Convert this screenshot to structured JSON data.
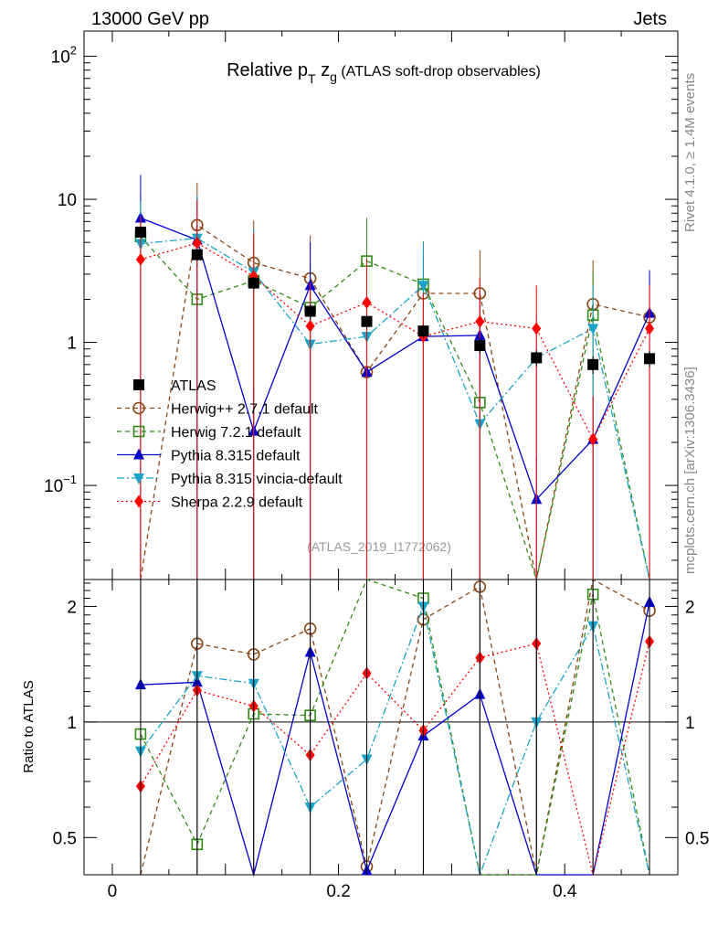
{
  "chart_data": {
    "type": "line",
    "header_left": "13000 GeV pp",
    "header_right": "Jets",
    "title_main": "Relative p",
    "title_sub_T": "T",
    "title_z": " z",
    "title_sub_g": "g",
    "title_paren": " (ATLAS soft-drop observables)",
    "side_label_top": "Rivet 4.1.0, ≥ 1.4M events",
    "side_label_bottom": "mcplots.cern.ch [arXiv:1306.3436]",
    "analysis_label": "(ATLAS_2019_I1772062)",
    "ratio_ylabel": "Ratio to ATLAS",
    "x_range": [
      -0.025,
      0.5
    ],
    "main_y_range": [
      0.022,
      150
    ],
    "ratio_y_range": [
      0.4,
      2.35
    ],
    "x_ticks": [
      {
        "v": 0,
        "label": "0"
      },
      {
        "v": 0.2,
        "label": "0.2"
      },
      {
        "v": 0.4,
        "label": "0.4"
      }
    ],
    "main_y_ticks": [
      {
        "v": 0.1,
        "base": "10",
        "exp": "−1"
      },
      {
        "v": 1,
        "base": "1",
        "exp": ""
      },
      {
        "v": 10,
        "base": "10",
        "exp": ""
      },
      {
        "v": 100,
        "base": "10",
        "exp": "2"
      }
    ],
    "ratio_y_ticks": [
      {
        "v": 0.5,
        "label": "0.5"
      },
      {
        "v": 1,
        "label": "1"
      },
      {
        "v": 2,
        "label": "2"
      }
    ],
    "x": [
      0.025,
      0.075,
      0.125,
      0.175,
      0.225,
      0.275,
      0.325,
      0.375,
      0.425,
      0.475
    ],
    "series": [
      {
        "name": "ATLAS",
        "color": "#000000",
        "marker": "square",
        "dash": "",
        "connect": false,
        "values": [
          5.9,
          4.1,
          2.6,
          1.65,
          1.4,
          1.2,
          0.95,
          0.78,
          0.7,
          0.77
        ],
        "err_up": [
          0.0,
          0.3,
          0.25,
          0.2,
          0.15,
          0.12,
          0.12,
          0.1,
          0.1,
          0.1
        ],
        "err_dn": [
          0.0,
          0.3,
          0.25,
          0.2,
          0.15,
          0.12,
          0.12,
          0.1,
          0.1,
          0.1
        ]
      },
      {
        "name": "Herwig++ 2.7.1 default",
        "color": "#8b4513",
        "marker": "circle-open",
        "dash": "5,4",
        "connect": true,
        "values": [
          0.02,
          6.6,
          3.6,
          2.8,
          0.62,
          2.2,
          2.2,
          0.0,
          1.85,
          1.5
        ],
        "ratio": [
          0.3,
          1.6,
          1.5,
          1.75,
          0.42,
          1.85,
          2.25,
          0.0,
          2.6,
          1.95
        ],
        "err_up": [
          0,
          6.5,
          3.5,
          2.8,
          1.2,
          2.2,
          2.2,
          0,
          1.9,
          1.5
        ],
        "err_dn": [
          0,
          6.5,
          3.5,
          2.8,
          0.62,
          2.2,
          2.2,
          0,
          1.85,
          1.5
        ]
      },
      {
        "name": "Herwig 7.2.1 default",
        "color": "#2e8b13",
        "marker": "square-open",
        "dash": "5,4",
        "connect": true,
        "values": [
          5.5,
          2.0,
          2.7,
          1.75,
          3.7,
          2.55,
          0.38,
          0.02,
          1.55,
          0.02
        ],
        "ratio": [
          0.93,
          0.48,
          1.05,
          1.04,
          2.6,
          2.1,
          0.3,
          0.2,
          2.15,
          0.3
        ],
        "err_up": [
          5.5,
          2.0,
          2.7,
          1.75,
          3.7,
          2.55,
          0.4,
          0,
          1.55,
          0
        ],
        "err_dn": [
          5.5,
          2.0,
          2.7,
          1.75,
          3.7,
          2.55,
          0.38,
          0,
          1.55,
          0
        ]
      },
      {
        "name": "Pythia 8.315 default",
        "color": "#0000cc",
        "marker": "triangle-up",
        "dash": "",
        "connect": true,
        "values": [
          7.4,
          5.2,
          0.24,
          2.5,
          0.62,
          1.1,
          1.12,
          0.08,
          0.21,
          1.6
        ],
        "ratio": [
          1.25,
          1.27,
          0.3,
          1.52,
          0.41,
          0.92,
          1.18,
          0.3,
          0.3,
          2.05
        ],
        "err_up": [
          7.4,
          5.2,
          0.24,
          2.5,
          0.62,
          1.1,
          1.12,
          0.08,
          0.21,
          1.6
        ],
        "err_dn": [
          7.4,
          5.2,
          0.24,
          2.5,
          0.62,
          1.1,
          1.12,
          0.08,
          0.21,
          1.6
        ]
      },
      {
        "name": "Pythia 8.315 vincia-default",
        "color": "#1aa3c7",
        "marker": "triangle-down",
        "dash": "8,3,2,3",
        "connect": true,
        "values": [
          4.9,
          5.35,
          3.1,
          0.97,
          1.1,
          2.5,
          0.27,
          0.78,
          1.25,
          0.02
        ],
        "ratio": [
          0.84,
          1.32,
          1.26,
          0.6,
          0.8,
          2.0,
          0.3,
          1.0,
          1.78,
          0.3
        ],
        "err_up": [
          4.9,
          5.35,
          3.1,
          0.97,
          1.1,
          2.5,
          0.27,
          0.78,
          1.25,
          0
        ],
        "err_dn": [
          4.9,
          5.35,
          3.1,
          0.97,
          1.1,
          2.5,
          0.27,
          0.78,
          1.25,
          0
        ]
      },
      {
        "name": "Sherpa 2.2.9 default",
        "color": "#ff0000",
        "marker": "diamond",
        "dash": "2,3",
        "connect": true,
        "values": [
          3.8,
          4.95,
          2.9,
          1.3,
          1.9,
          1.1,
          1.4,
          1.25,
          0.21,
          1.25
        ],
        "ratio": [
          0.68,
          1.21,
          1.1,
          0.82,
          1.34,
          0.95,
          1.47,
          1.6,
          0.3,
          1.62
        ],
        "err_up": [
          3.8,
          4.95,
          2.9,
          1.3,
          1.9,
          1.1,
          1.4,
          1.25,
          0.21,
          1.25
        ],
        "err_dn": [
          3.8,
          4.95,
          2.9,
          1.3,
          1.9,
          1.1,
          1.4,
          1.25,
          0.21,
          1.25
        ]
      }
    ]
  }
}
